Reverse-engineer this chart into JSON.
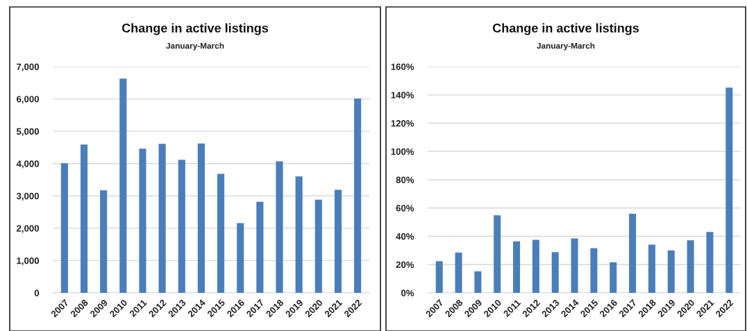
{
  "chart_data": [
    {
      "type": "bar",
      "title": "Change in active listings",
      "subtitle": "January-March",
      "categories": [
        "2007",
        "2008",
        "2009",
        "2010",
        "2011",
        "2012",
        "2013",
        "2014",
        "2015",
        "2016",
        "2017",
        "2018",
        "2019",
        "2020",
        "2021",
        "2022"
      ],
      "values": [
        4010,
        4590,
        3170,
        6630,
        4460,
        4610,
        4120,
        4620,
        3680,
        2160,
        2820,
        4070,
        3600,
        2880,
        3190,
        6010
      ],
      "color": "#4a7ebb",
      "ylim": [
        0,
        7000
      ],
      "yticks": [
        0,
        {
          "value": 1000,
          "label": "1,000"
        },
        {
          "value": 2000,
          "label": "2,000"
        },
        {
          "value": 3000,
          "label": "3,000"
        },
        {
          "value": 4000,
          "label": "4,000"
        },
        {
          "value": 5000,
          "label": "5,000"
        },
        {
          "value": 6000,
          "label": "6,000"
        },
        {
          "value": 7000,
          "label": "7,000"
        }
      ],
      "grid": "y"
    },
    {
      "type": "bar",
      "title": "Change in active listings",
      "subtitle": "January-March",
      "categories": [
        "2007",
        "2008",
        "2009",
        "2010",
        "2011",
        "2012",
        "2013",
        "2014",
        "2015",
        "2016",
        "2017",
        "2018",
        "2019",
        "2020",
        "2021",
        "2022"
      ],
      "values": [
        22.4,
        28.5,
        15.2,
        54.9,
        36.4,
        37.5,
        28.8,
        38.5,
        31.6,
        21.6,
        56.0,
        34.1,
        30.0,
        37.2,
        43.1,
        145.1
      ],
      "color": "#4a7ebb",
      "ylim": [
        0,
        160
      ],
      "yticks": [
        {
          "value": 0,
          "label": "0%"
        },
        {
          "value": 20,
          "label": "20%"
        },
        {
          "value": 40,
          "label": "40%"
        },
        {
          "value": 60,
          "label": "60%"
        },
        {
          "value": 80,
          "label": "80%"
        },
        {
          "value": 100,
          "label": "100%"
        },
        {
          "value": 120,
          "label": "120%"
        },
        {
          "value": 140,
          "label": "140%"
        },
        {
          "value": 160,
          "label": "160%"
        }
      ],
      "grid": "y"
    }
  ]
}
